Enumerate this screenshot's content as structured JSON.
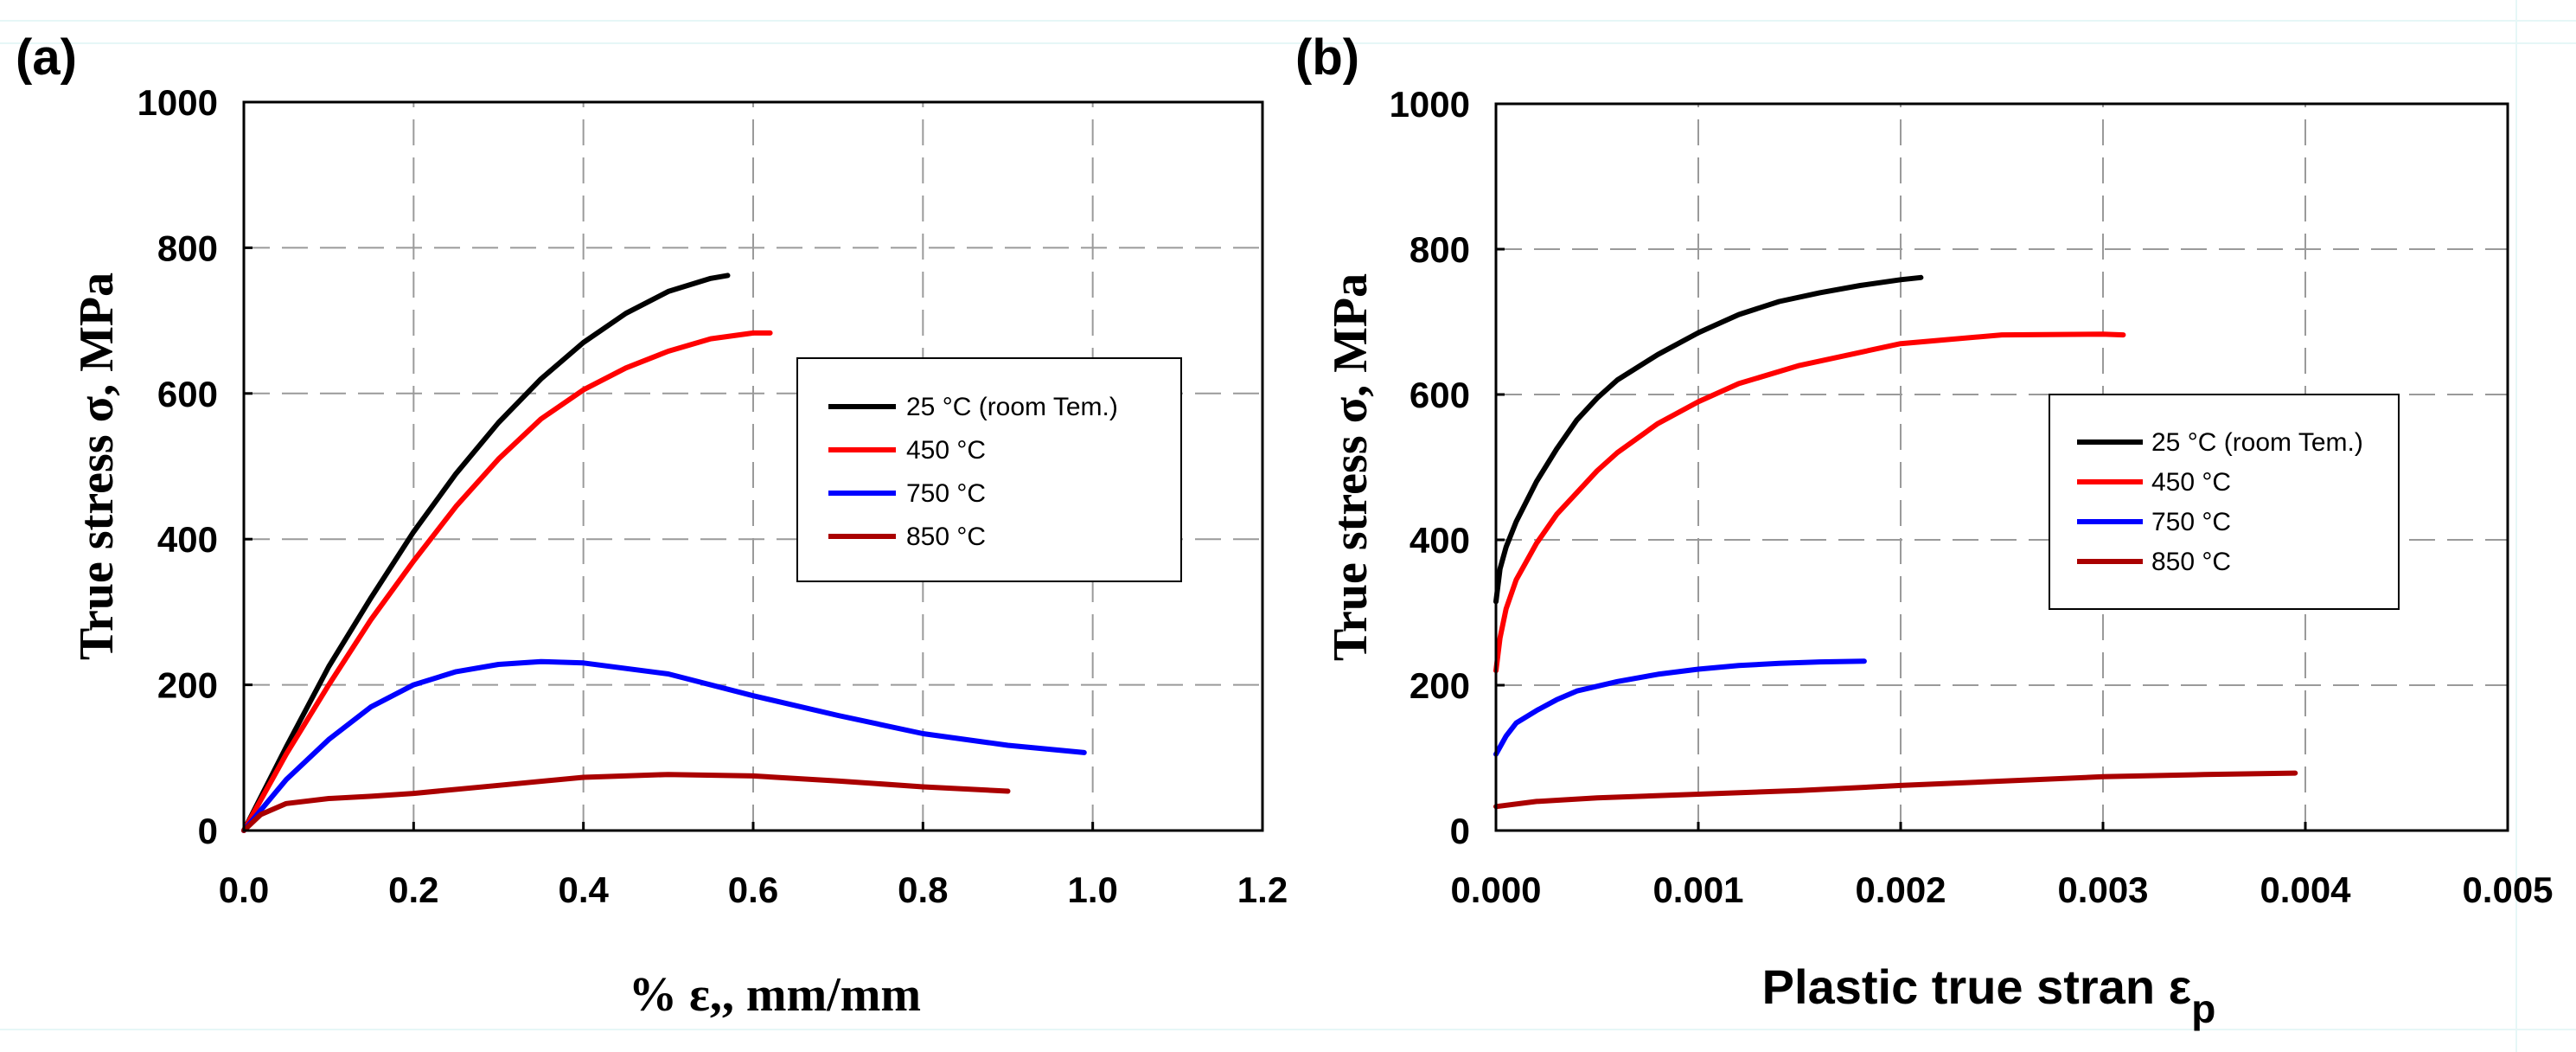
{
  "chart_data": [
    {
      "id": "a",
      "type": "line",
      "panel_label": "(a)",
      "xlabel": "% ε,, mm/mm",
      "ylabel": "True stress σ, MPa",
      "xlim": [
        0,
        1.2
      ],
      "ylim": [
        0,
        1000
      ],
      "xticks": [
        "0.0",
        "0.2",
        "0.4",
        "0.6",
        "0.8",
        "1.0",
        "1.2"
      ],
      "yticks": [
        "0",
        "200",
        "400",
        "600",
        "800",
        "1000"
      ],
      "grid": true,
      "legend_position": "right-center",
      "series": [
        {
          "name": "25 °C (room Tem.)",
          "color": "#000000",
          "x": [
            0,
            0.05,
            0.1,
            0.15,
            0.2,
            0.25,
            0.3,
            0.35,
            0.4,
            0.45,
            0.5,
            0.55,
            0.57
          ],
          "y": [
            0,
            115,
            225,
            320,
            410,
            490,
            560,
            620,
            670,
            710,
            740,
            758,
            762
          ]
        },
        {
          "name": "450 °C",
          "color": "#ff0000",
          "x": [
            0,
            0.05,
            0.1,
            0.15,
            0.2,
            0.25,
            0.3,
            0.35,
            0.4,
            0.45,
            0.5,
            0.55,
            0.6,
            0.62
          ],
          "y": [
            0,
            105,
            200,
            290,
            370,
            445,
            510,
            565,
            605,
            635,
            658,
            675,
            683,
            683
          ]
        },
        {
          "name": "750 °C",
          "color": "#0000ff",
          "x": [
            0,
            0.05,
            0.1,
            0.15,
            0.2,
            0.25,
            0.3,
            0.35,
            0.4,
            0.5,
            0.6,
            0.7,
            0.8,
            0.9,
            0.99
          ],
          "y": [
            0,
            70,
            125,
            170,
            200,
            218,
            228,
            232,
            230,
            215,
            185,
            158,
            133,
            117,
            107
          ]
        },
        {
          "name": "850 °C",
          "color": "#aa0000",
          "x": [
            0,
            0.02,
            0.05,
            0.1,
            0.15,
            0.2,
            0.3,
            0.4,
            0.5,
            0.6,
            0.7,
            0.8,
            0.9
          ],
          "y": [
            0,
            22,
            37,
            44,
            47,
            51,
            62,
            73,
            77,
            75,
            68,
            60,
            54
          ]
        }
      ]
    },
    {
      "id": "b",
      "type": "line",
      "panel_label": "(b)",
      "xlabel": "Plastic true stran ε",
      "xlabel_sub": "p",
      "ylabel": "True stress σ, MPa",
      "xlim": [
        0,
        0.005
      ],
      "ylim": [
        0,
        1000
      ],
      "xticks": [
        "0.000",
        "0.001",
        "0.002",
        "0.003",
        "0.004",
        "0.005"
      ],
      "yticks": [
        "0",
        "200",
        "400",
        "600",
        "800",
        "1000"
      ],
      "grid": true,
      "legend_position": "right-center",
      "series": [
        {
          "name": "25 °C (room Tem.)",
          "color": "#000000",
          "x": [
            0,
            2e-05,
            5e-05,
            0.0001,
            0.0002,
            0.0003,
            0.0004,
            0.0005,
            0.0006,
            0.0008,
            0.001,
            0.0012,
            0.0014,
            0.0016,
            0.0018,
            0.002,
            0.0021
          ],
          "y": [
            315,
            360,
            390,
            425,
            480,
            525,
            565,
            595,
            620,
            655,
            685,
            710,
            728,
            740,
            750,
            758,
            761
          ]
        },
        {
          "name": "450 °C",
          "color": "#ff0000",
          "x": [
            0,
            2e-05,
            5e-05,
            0.0001,
            0.0002,
            0.0003,
            0.0004,
            0.0005,
            0.0006,
            0.0008,
            0.001,
            0.0012,
            0.0015,
            0.002,
            0.0025,
            0.003,
            0.0031
          ],
          "y": [
            220,
            265,
            305,
            345,
            395,
            435,
            465,
            495,
            520,
            560,
            590,
            615,
            640,
            670,
            682,
            683,
            682
          ]
        },
        {
          "name": "750 °C",
          "color": "#0000ff",
          "x": [
            0,
            2e-05,
            5e-05,
            0.0001,
            0.0002,
            0.0003,
            0.0004,
            0.0006,
            0.0008,
            0.001,
            0.0012,
            0.0014,
            0.0016,
            0.00182
          ],
          "y": [
            105,
            115,
            130,
            148,
            165,
            180,
            192,
            205,
            215,
            222,
            227,
            230,
            232,
            233
          ]
        },
        {
          "name": "850 °C",
          "color": "#aa0000",
          "x": [
            0,
            0.0002,
            0.0005,
            0.001,
            0.0015,
            0.002,
            0.0025,
            0.003,
            0.0035,
            0.00395
          ],
          "y": [
            33,
            40,
            45,
            50,
            55,
            62,
            68,
            74,
            77,
            79
          ]
        }
      ]
    }
  ]
}
